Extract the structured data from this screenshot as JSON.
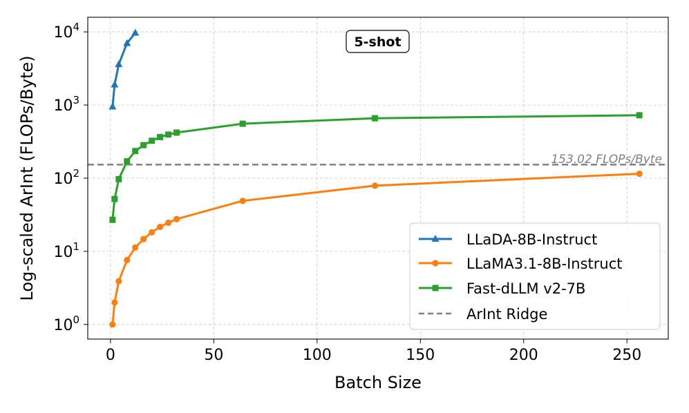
{
  "chart_data": {
    "type": "line",
    "annotation_box": "5-shot",
    "xlabel": "Batch Size",
    "ylabel": "Log-scaled ArInt (FLOPs/Byte)",
    "xlim": [
      -11,
      270
    ],
    "ylim_log10": [
      -0.2,
      4.2
    ],
    "y_scale": "log",
    "grid": true,
    "legend_position": "lower-right",
    "x_ticks": [
      0,
      50,
      100,
      150,
      200,
      250
    ],
    "y_ticks": [
      {
        "value": 1,
        "base": "10",
        "exp": "0"
      },
      {
        "value": 10,
        "base": "10",
        "exp": "1"
      },
      {
        "value": 100,
        "base": "10",
        "exp": "2"
      },
      {
        "value": 1000,
        "base": "10",
        "exp": "3"
      },
      {
        "value": 10000,
        "base": "10",
        "exp": "4"
      }
    ],
    "series": [
      {
        "name": "LLaDA-8B-Instruct",
        "color": "#1f77b4",
        "marker": "triangle",
        "x": [
          1,
          2,
          4,
          8,
          12
        ],
        "y": [
          950,
          1900,
          3600,
          7000,
          9700
        ]
      },
      {
        "name": "LLaMA3.1-8B-Instruct",
        "color": "#ff7f0e",
        "marker": "circle",
        "x": [
          1,
          2,
          4,
          8,
          12,
          16,
          20,
          24,
          28,
          32,
          64,
          128,
          256
        ],
        "y": [
          1,
          2,
          3.9,
          7.6,
          11.3,
          14.7,
          18.2,
          21.6,
          24.6,
          27.6,
          49,
          79,
          115
        ]
      },
      {
        "name": "Fast-dLLM v2-7B",
        "color": "#2ca02c",
        "marker": "square",
        "x": [
          1,
          2,
          4,
          8,
          12,
          16,
          20,
          24,
          28,
          32,
          64,
          128,
          256
        ],
        "y": [
          27,
          52,
          97,
          170,
          235,
          283,
          325,
          365,
          395,
          420,
          555,
          660,
          725
        ]
      }
    ],
    "ridge": {
      "name": "ArInt Ridge",
      "value": 153.02,
      "label": "153.02 FLOPs/Byte",
      "color": "#808080"
    }
  }
}
